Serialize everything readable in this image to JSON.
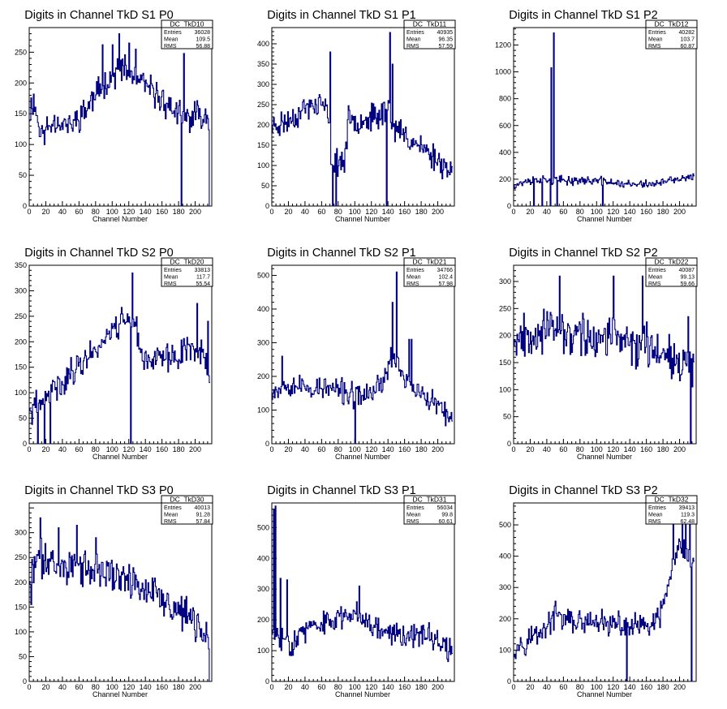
{
  "chart_data": [
    {
      "type": "line",
      "title": "Digits in Channel TkD S1 P0",
      "xlabel": "Channel Number",
      "xlim": [
        0,
        220
      ],
      "ylim": [
        0,
        290
      ],
      "xticks": [
        0,
        20,
        40,
        60,
        80,
        100,
        120,
        140,
        160,
        180,
        200
      ],
      "yticks": [
        0,
        50,
        100,
        150,
        200,
        250
      ],
      "stats": {
        "name": "DC_TkD10",
        "entries": "36028",
        "mean": "109.5",
        "rms": "56.88"
      },
      "profile": [
        [
          0,
          150
        ],
        [
          5,
          170
        ],
        [
          15,
          115
        ],
        [
          30,
          140
        ],
        [
          50,
          130
        ],
        [
          70,
          160
        ],
        [
          90,
          200
        ],
        [
          110,
          225
        ],
        [
          130,
          205
        ],
        [
          150,
          185
        ],
        [
          170,
          160
        ],
        [
          190,
          140
        ],
        [
          205,
          150
        ],
        [
          217,
          145
        ]
      ],
      "spikes": [
        [
          5,
          182
        ],
        [
          88,
          262
        ],
        [
          100,
          262
        ],
        [
          108,
          280
        ],
        [
          120,
          265
        ],
        [
          128,
          255
        ],
        [
          183,
          0
        ],
        [
          186,
          248
        ],
        [
          217,
          0
        ]
      ],
      "noise": 28,
      "seed": 11
    },
    {
      "type": "line",
      "title": "Digits in Channel TkD S1 P1",
      "xlabel": "Channel Number",
      "xlim": [
        0,
        220
      ],
      "ylim": [
        0,
        440
      ],
      "xticks": [
        0,
        20,
        40,
        60,
        80,
        100,
        120,
        140,
        160,
        180,
        200
      ],
      "yticks": [
        0,
        50,
        100,
        150,
        200,
        250,
        300,
        350,
        400
      ],
      "stats": {
        "name": "DC_TkD11",
        "entries": "40935",
        "mean": "96.35",
        "rms": "57.59"
      },
      "profile": [
        [
          0,
          195
        ],
        [
          20,
          210
        ],
        [
          40,
          240
        ],
        [
          60,
          255
        ],
        [
          68,
          220
        ],
        [
          72,
          110
        ],
        [
          88,
          110
        ],
        [
          92,
          210
        ],
        [
          110,
          215
        ],
        [
          130,
          220
        ],
        [
          140,
          250
        ],
        [
          146,
          195
        ],
        [
          170,
          160
        ],
        [
          200,
          115
        ],
        [
          217,
          85
        ]
      ],
      "spikes": [
        [
          70,
          380
        ],
        [
          73,
          0
        ],
        [
          77,
          0
        ],
        [
          138,
          0
        ],
        [
          142,
          428
        ],
        [
          145,
          350
        ]
      ],
      "noise": 40,
      "seed": 23
    },
    {
      "type": "line",
      "title": "Digits in Channel TkD S1 P2",
      "xlabel": "Channel Number",
      "xlim": [
        0,
        220
      ],
      "ylim": [
        0,
        1330
      ],
      "xticks": [
        0,
        20,
        40,
        60,
        80,
        100,
        120,
        140,
        160,
        180,
        200
      ],
      "yticks": [
        0,
        200,
        400,
        600,
        800,
        1000,
        1200
      ],
      "stats": {
        "name": "DC_TkD12",
        "entries": "40282",
        "mean": "103.7",
        "rms": "60.87"
      },
      "profile": [
        [
          0,
          160
        ],
        [
          30,
          200
        ],
        [
          60,
          190
        ],
        [
          100,
          190
        ],
        [
          140,
          160
        ],
        [
          170,
          165
        ],
        [
          200,
          200
        ],
        [
          215,
          210
        ]
      ],
      "spikes": [
        [
          24,
          0
        ],
        [
          34,
          0
        ],
        [
          44,
          0
        ],
        [
          45,
          1030
        ],
        [
          48,
          1290
        ],
        [
          52,
          0
        ],
        [
          107,
          0
        ]
      ],
      "noise": 40,
      "seed": 37
    },
    {
      "type": "line",
      "title": "Digits in Channel TkD S2 P0",
      "xlabel": "Channel Number",
      "xlim": [
        0,
        220
      ],
      "ylim": [
        0,
        350
      ],
      "xticks": [
        0,
        20,
        40,
        60,
        80,
        100,
        120,
        140,
        160,
        180,
        200
      ],
      "yticks": [
        0,
        50,
        100,
        150,
        200,
        250,
        300,
        350
      ],
      "stats": {
        "name": "DC_TkD20",
        "entries": "33813",
        "mean": "117.7",
        "rms": "55.54"
      },
      "profile": [
        [
          0,
          60
        ],
        [
          10,
          75
        ],
        [
          20,
          90
        ],
        [
          40,
          120
        ],
        [
          60,
          155
        ],
        [
          80,
          185
        ],
        [
          100,
          225
        ],
        [
          115,
          245
        ],
        [
          125,
          255
        ],
        [
          135,
          170
        ],
        [
          160,
          165
        ],
        [
          180,
          175
        ],
        [
          195,
          190
        ],
        [
          210,
          180
        ],
        [
          217,
          130
        ]
      ],
      "spikes": [
        [
          10,
          0
        ],
        [
          18,
          0
        ],
        [
          25,
          0
        ],
        [
          122,
          0
        ],
        [
          124,
          335
        ],
        [
          202,
          275
        ],
        [
          215,
          240
        ],
        [
          217,
          120
        ]
      ],
      "noise": 35,
      "seed": 41
    },
    {
      "type": "line",
      "title": "Digits in Channel TkD S2 P1",
      "xlabel": "Channel Number",
      "xlim": [
        0,
        220
      ],
      "ylim": [
        0,
        530
      ],
      "xticks": [
        0,
        20,
        40,
        60,
        80,
        100,
        120,
        140,
        160,
        180,
        200
      ],
      "yticks": [
        0,
        100,
        200,
        300,
        400,
        500
      ],
      "stats": {
        "name": "DC_TkD21",
        "entries": "34766",
        "mean": "102.4",
        "rms": "57.98"
      },
      "profile": [
        [
          0,
          160
        ],
        [
          20,
          180
        ],
        [
          40,
          165
        ],
        [
          60,
          165
        ],
        [
          80,
          160
        ],
        [
          100,
          140
        ],
        [
          120,
          150
        ],
        [
          135,
          190
        ],
        [
          145,
          260
        ],
        [
          160,
          200
        ],
        [
          180,
          140
        ],
        [
          200,
          115
        ],
        [
          217,
          60
        ]
      ],
      "spikes": [
        [
          12,
          260
        ],
        [
          100,
          0
        ],
        [
          145,
          420
        ],
        [
          150,
          510
        ],
        [
          165,
          310
        ],
        [
          168,
          310
        ]
      ],
      "noise": 45,
      "seed": 53
    },
    {
      "type": "line",
      "title": "Digits in Channel TkD S2 P2",
      "xlabel": "Channel Number",
      "xlim": [
        0,
        220
      ],
      "ylim": [
        0,
        330
      ],
      "xticks": [
        0,
        20,
        40,
        60,
        80,
        100,
        120,
        140,
        160,
        180,
        200
      ],
      "yticks": [
        0,
        50,
        100,
        150,
        200,
        250,
        300
      ],
      "stats": {
        "name": "DC_TkD22",
        "entries": "40087",
        "mean": "99.13",
        "rms": "59.66"
      },
      "profile": [
        [
          0,
          200
        ],
        [
          30,
          210
        ],
        [
          60,
          205
        ],
        [
          90,
          195
        ],
        [
          120,
          195
        ],
        [
          150,
          185
        ],
        [
          180,
          175
        ],
        [
          200,
          160
        ],
        [
          212,
          140
        ]
      ],
      "spikes": [
        [
          55,
          310
        ],
        [
          120,
          310
        ],
        [
          155,
          310
        ],
        [
          210,
          235
        ],
        [
          213,
          0
        ]
      ],
      "noise": 50,
      "seed": 67
    },
    {
      "type": "line",
      "title": "Digits in Channel TkD S3 P0",
      "xlabel": "Channel Number",
      "xlim": [
        0,
        220
      ],
      "ylim": [
        0,
        360
      ],
      "xticks": [
        0,
        20,
        40,
        60,
        80,
        100,
        120,
        140,
        160,
        180,
        200
      ],
      "yticks": [
        0,
        50,
        100,
        150,
        200,
        250,
        300
      ],
      "stats": {
        "name": "DC_TkD30",
        "entries": "40013",
        "mean": "91.28",
        "rms": "57.84"
      },
      "profile": [
        [
          0,
          200
        ],
        [
          10,
          250
        ],
        [
          30,
          240
        ],
        [
          50,
          235
        ],
        [
          70,
          225
        ],
        [
          90,
          220
        ],
        [
          110,
          210
        ],
        [
          130,
          200
        ],
        [
          150,
          180
        ],
        [
          170,
          150
        ],
        [
          190,
          130
        ],
        [
          210,
          100
        ],
        [
          217,
          75
        ]
      ],
      "spikes": [
        [
          2,
          155
        ],
        [
          13,
          330
        ],
        [
          35,
          310
        ],
        [
          57,
          315
        ],
        [
          80,
          290
        ],
        [
          217,
          0
        ]
      ],
      "noise": 45,
      "seed": 71
    },
    {
      "type": "line",
      "title": "Digits in Channel TkD S3 P1",
      "xlabel": "Channel Number",
      "xlim": [
        0,
        220
      ],
      "ylim": [
        0,
        580
      ],
      "xticks": [
        0,
        20,
        40,
        60,
        80,
        100,
        120,
        140,
        160,
        180,
        200
      ],
      "yticks": [
        0,
        100,
        200,
        300,
        400,
        500
      ],
      "stats": {
        "name": "DC_TkD31",
        "entries": "56034",
        "mean": "99.8",
        "rms": "60.61"
      },
      "profile": [
        [
          0,
          150
        ],
        [
          10,
          140
        ],
        [
          25,
          130
        ],
        [
          40,
          165
        ],
        [
          60,
          185
        ],
        [
          80,
          200
        ],
        [
          100,
          230
        ],
        [
          120,
          190
        ],
        [
          140,
          160
        ],
        [
          160,
          155
        ],
        [
          180,
          150
        ],
        [
          200,
          140
        ],
        [
          217,
          90
        ]
      ],
      "spikes": [
        [
          2,
          560
        ],
        [
          4,
          570
        ],
        [
          10,
          335
        ],
        [
          18,
          330
        ],
        [
          25,
          85
        ],
        [
          105,
          310
        ]
      ],
      "noise": 50,
      "seed": 83
    },
    {
      "type": "line",
      "title": "Digits in Channel TkD S3 P2",
      "xlabel": "Channel Number",
      "xlim": [
        0,
        220
      ],
      "ylim": [
        0,
        570
      ],
      "xticks": [
        0,
        20,
        40,
        60,
        80,
        100,
        120,
        140,
        160,
        180,
        200
      ],
      "yticks": [
        0,
        100,
        200,
        300,
        400,
        500
      ],
      "stats": {
        "name": "DC_TkD32",
        "entries": "39413",
        "mean": "119.3",
        "rms": "62.48"
      },
      "profile": [
        [
          0,
          110
        ],
        [
          20,
          140
        ],
        [
          40,
          175
        ],
        [
          50,
          210
        ],
        [
          60,
          200
        ],
        [
          80,
          185
        ],
        [
          100,
          185
        ],
        [
          120,
          180
        ],
        [
          140,
          175
        ],
        [
          160,
          175
        ],
        [
          175,
          190
        ],
        [
          185,
          300
        ],
        [
          200,
          430
        ],
        [
          212,
          380
        ]
      ],
      "spikes": [
        [
          136,
          0
        ],
        [
          192,
          520
        ],
        [
          203,
          560
        ],
        [
          207,
          560
        ],
        [
          212,
          560
        ],
        [
          214,
          0
        ]
      ],
      "noise": 50,
      "seed": 97
    }
  ],
  "stat_labels": {
    "entries": "Entries",
    "mean": "Mean",
    "rms": "RMS"
  }
}
